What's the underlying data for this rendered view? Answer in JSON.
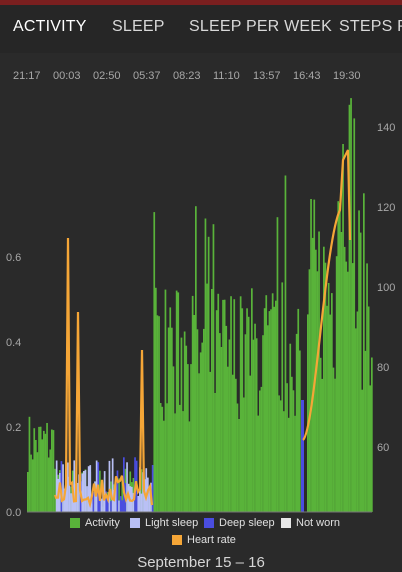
{
  "tabs": [
    "ACTIVITY",
    "SLEEP",
    "SLEEP PER WEEK",
    "STEPS P"
  ],
  "time_labels": [
    "21:17",
    "00:03",
    "02:50",
    "05:37",
    "08:23",
    "11:10",
    "13:57",
    "16:43",
    "19:30"
  ],
  "left_axis": [
    "0.6",
    "0.4",
    "0.2",
    "0.0"
  ],
  "right_axis": [
    "140",
    "120",
    "100",
    "80",
    "60"
  ],
  "legend": {
    "activity": "Activity",
    "light_sleep": "Light sleep",
    "deep_sleep": "Deep sleep",
    "not_worn": "Not worn",
    "heart_rate": "Heart rate"
  },
  "colors": {
    "activity": "#59b33a",
    "light_sleep": "#b9c0f5",
    "deep_sleep": "#4a4de0",
    "not_worn": "#e6e6e6",
    "heart_rate": "#f5a637"
  },
  "date": "September 15 – 16"
}
